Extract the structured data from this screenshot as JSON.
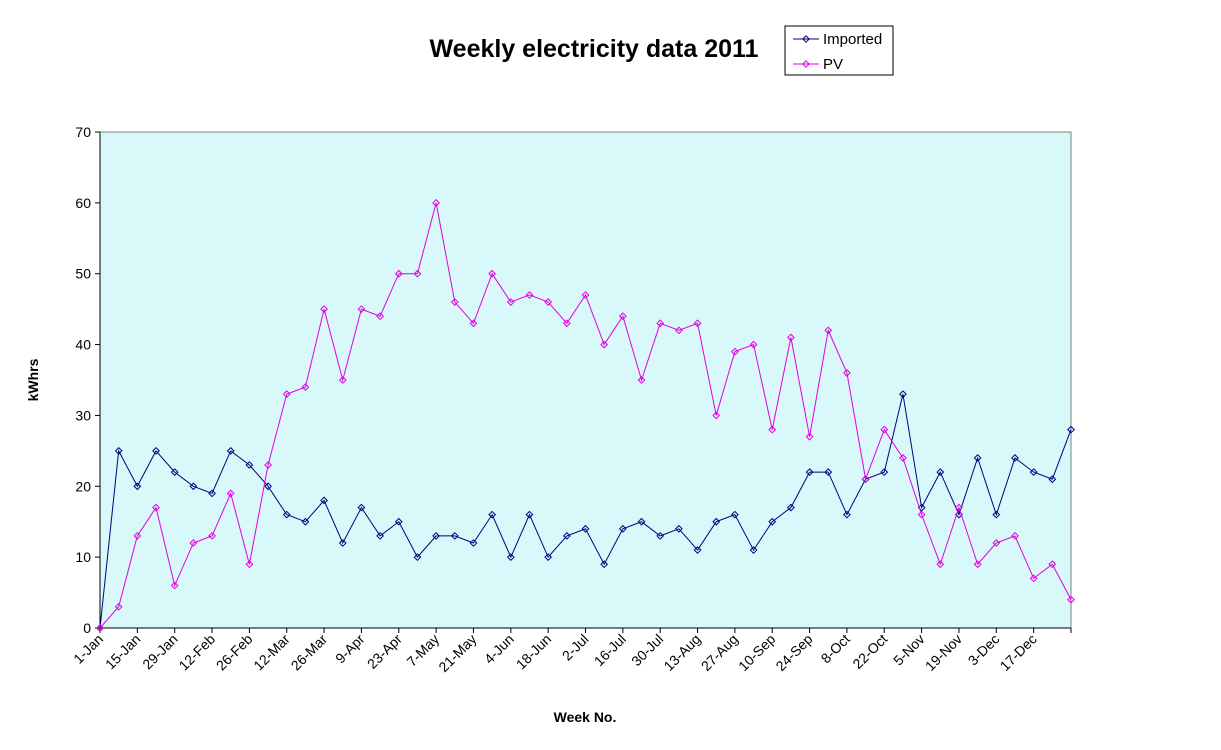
{
  "chart_data": {
    "type": "line",
    "title": "Weekly electricity data 2011",
    "xlabel": "Week No.",
    "ylabel": "kWhrs",
    "ylim": [
      0,
      70
    ],
    "yticks": [
      0,
      10,
      20,
      30,
      40,
      50,
      60,
      70
    ],
    "grid": false,
    "legend_position": "top-right",
    "plot_background": "#d9f8f9",
    "x_tick_labels": [
      "1-Jan",
      "15-Jan",
      "29-Jan",
      "12-Feb",
      "26-Feb",
      "12-Mar",
      "26-Mar",
      "9-Apr",
      "23-Apr",
      "7-May",
      "21-May",
      "4-Jun",
      "18-Jun",
      "2-Jul",
      "16-Jul",
      "30-Jul",
      "13-Aug",
      "27-Aug",
      "10-Sep",
      "24-Sep",
      "8-Oct",
      "22-Oct",
      "5-Nov",
      "19-Nov",
      "3-Dec",
      "17-Dec"
    ],
    "series": [
      {
        "name": "Imported",
        "color": "#000080",
        "marker": "diamond",
        "values": [
          0,
          25,
          20,
          25,
          22,
          20,
          19,
          25,
          23,
          20,
          16,
          15,
          18,
          12,
          17,
          13,
          15,
          10,
          13,
          13,
          12,
          16,
          10,
          16,
          10,
          13,
          14,
          9,
          14,
          15,
          13,
          14,
          11,
          15,
          16,
          11,
          15,
          17,
          22,
          22,
          16,
          21,
          22,
          33,
          17,
          22,
          16,
          24,
          16,
          24,
          22,
          21,
          28
        ]
      },
      {
        "name": "PV",
        "color": "#e000e0",
        "marker": "diamond",
        "values": [
          0,
          3,
          13,
          17,
          6,
          12,
          13,
          19,
          9,
          23,
          33,
          34,
          45,
          35,
          45,
          44,
          50,
          50,
          60,
          46,
          43,
          50,
          46,
          47,
          46,
          43,
          47,
          40,
          44,
          35,
          43,
          42,
          43,
          30,
          39,
          40,
          28,
          41,
          27,
          42,
          36,
          21,
          28,
          24,
          16,
          9,
          17,
          9,
          12,
          13,
          7,
          9,
          4
        ]
      }
    ]
  }
}
